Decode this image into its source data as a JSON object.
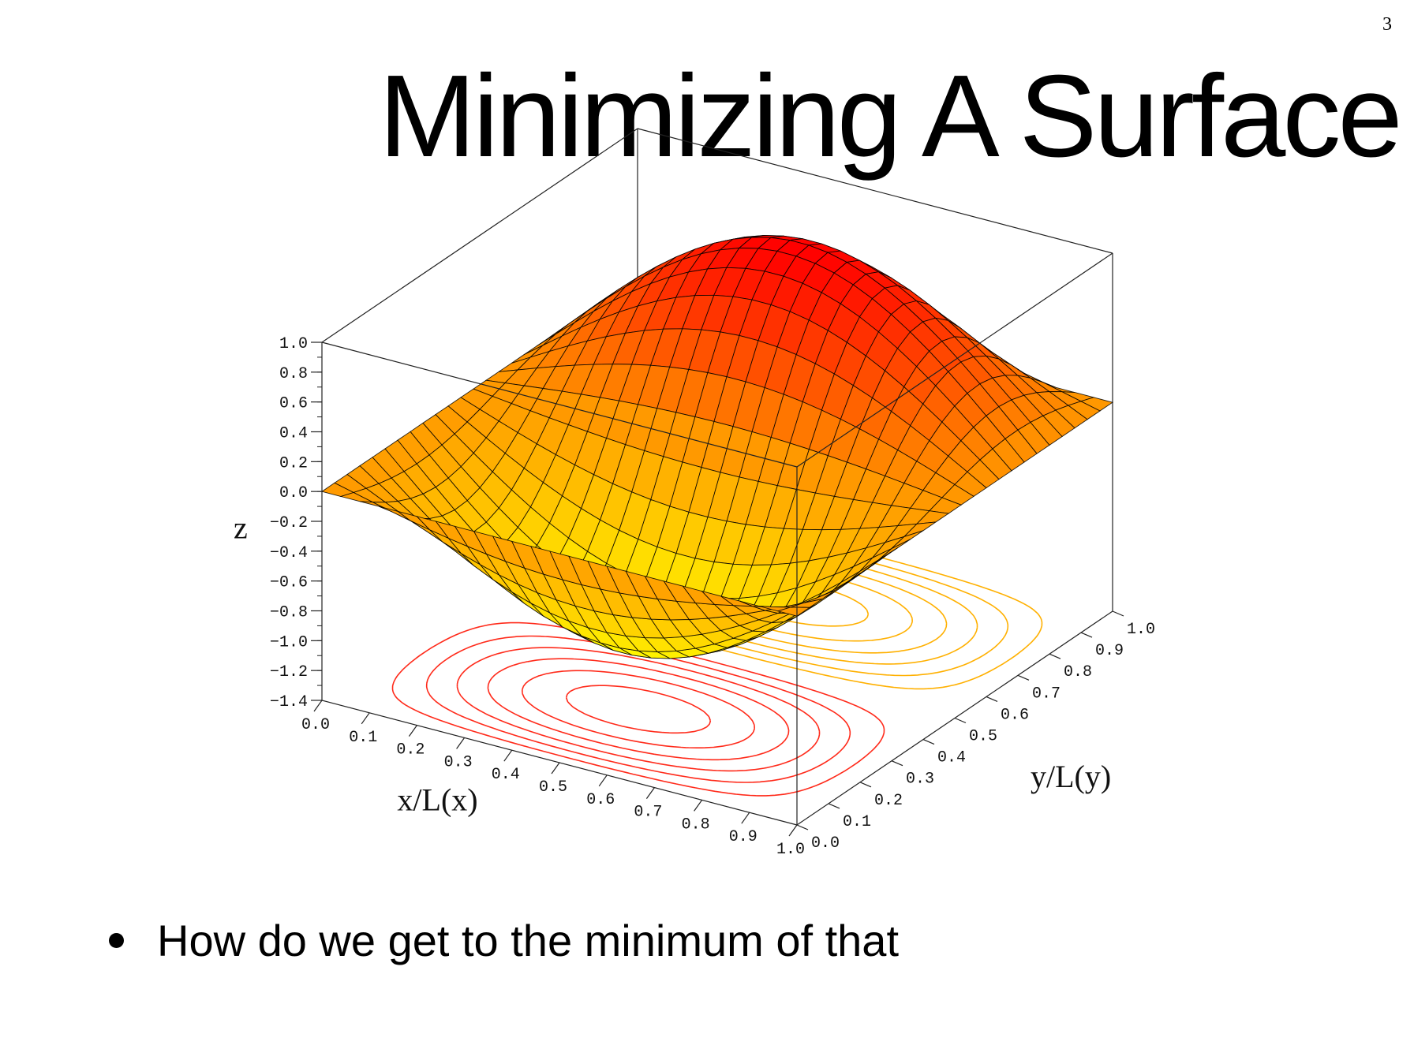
{
  "page_number": "3",
  "title": "Minimizing A Surface",
  "bullets": [
    "How do we get to the minimum of that"
  ],
  "chart_data": {
    "type": "surface",
    "function": "z = -sin(pi*x)*sin(2*pi*y)",
    "x": {
      "label": "x/L(x)",
      "range": [
        0.0,
        1.0
      ],
      "ticks": [
        "0.0",
        "0.1",
        "0.2",
        "0.3",
        "0.4",
        "0.5",
        "0.6",
        "0.7",
        "0.8",
        "0.9",
        "1.0"
      ]
    },
    "y": {
      "label": "y/L(y)",
      "range": [
        0.0,
        1.0
      ],
      "ticks": [
        "0.0",
        "0.1",
        "0.2",
        "0.3",
        "0.4",
        "0.5",
        "0.6",
        "0.7",
        "0.8",
        "0.9",
        "1.0"
      ]
    },
    "z": {
      "label": "z",
      "range": [
        -1.4,
        1.0
      ],
      "ticks": [
        "1.0",
        "0.8",
        "0.6",
        "0.4",
        "0.2",
        "0.0",
        "−0.2",
        "−0.4",
        "−0.6",
        "−0.8",
        "−1.0",
        "−1.2",
        "−1.4"
      ]
    },
    "grid_lines": 25,
    "contour_levels": [
      -0.9,
      -0.75,
      -0.6,
      -0.45,
      -0.3,
      -0.15,
      0.15,
      0.3,
      0.45,
      0.6,
      0.75,
      0.9
    ],
    "colors": {
      "high": "#ff0000",
      "mid": "#ff9900",
      "low": "#ffff00",
      "mesh": "#000000",
      "contour_high": "#ff2a1a",
      "contour_low": "#ffb000"
    }
  }
}
